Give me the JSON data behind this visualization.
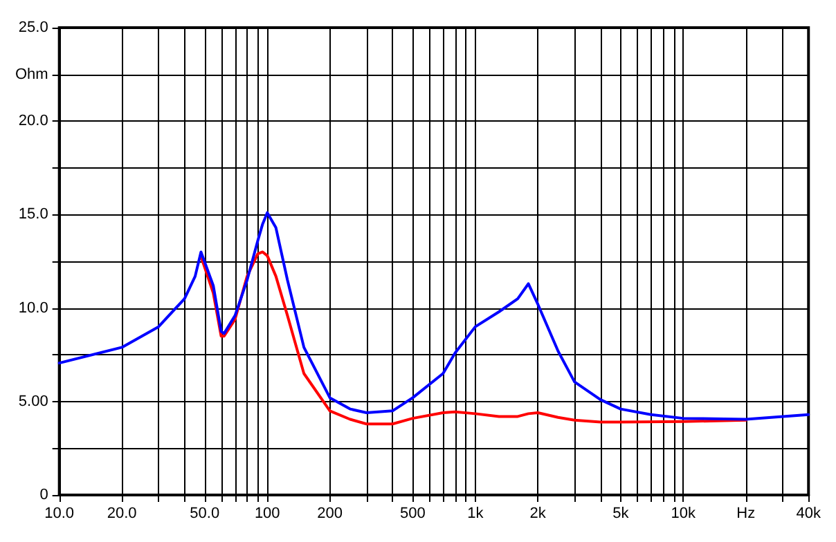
{
  "chart_data": {
    "type": "line",
    "log": "x",
    "grid": true,
    "marker": "none",
    "line_style": "solid",
    "xlim": [
      10,
      40000
    ],
    "xticks": [
      {
        "value": 10,
        "label": "10.0"
      },
      {
        "value": 20,
        "label": "20.0"
      },
      {
        "value": 30,
        "label": null
      },
      {
        "value": 40,
        "label": null
      },
      {
        "value": 50,
        "label": "50.0"
      },
      {
        "value": 60,
        "label": null
      },
      {
        "value": 70,
        "label": null
      },
      {
        "value": 80,
        "label": null
      },
      {
        "value": 90,
        "label": null
      },
      100,
      200,
      {
        "value": 300,
        "label": null
      },
      {
        "value": 400,
        "label": null
      },
      500,
      {
        "value": 600,
        "label": null
      },
      {
        "value": 700,
        "label": null
      },
      {
        "value": 800,
        "label": null
      },
      {
        "value": 900,
        "label": null
      },
      {
        "value": 1000,
        "label": "1k"
      },
      {
        "value": 2000,
        "label": "2k"
      },
      {
        "value": 3000,
        "label": null
      },
      {
        "value": 4000,
        "label": null
      },
      {
        "value": 5000,
        "label": "5k"
      },
      {
        "value": 6000,
        "label": null
      },
      {
        "value": 7000,
        "label": null
      },
      {
        "value": 8000,
        "label": null
      },
      {
        "value": 9000,
        "label": null
      },
      {
        "value": 10000,
        "label": "10k"
      },
      {
        "value": 20000,
        "label": "Hz"
      },
      {
        "value": 30000,
        "label": null
      },
      {
        "value": 40000,
        "label": "40k"
      }
    ],
    "ylim": [
      0,
      25
    ],
    "yticks": [
      0,
      {
        "value": 2.5,
        "label": null
      },
      {
        "value": 5,
        "label": "5.00"
      },
      {
        "value": 7.5,
        "label": null
      },
      {
        "value": 10,
        "label": "10.0"
      },
      {
        "value": 12.5,
        "label": null
      },
      {
        "value": 15,
        "label": "15.0"
      },
      {
        "value": 17.5,
        "label": null
      },
      {
        "value": 20,
        "label": "20.0"
      },
      {
        "value": 22.5,
        "label": "Ohm"
      },
      {
        "value": 25,
        "label": "25.0"
      }
    ],
    "series": [
      {
        "color": "#0000ff",
        "x": [
          10,
          20,
          30,
          40,
          45,
          48,
          55,
          60,
          62,
          70,
          80,
          90,
          95,
          100,
          110,
          125,
          150,
          200,
          250,
          300,
          400,
          500,
          700,
          800,
          1000,
          1300,
          1600,
          1800,
          2000,
          2500,
          3000,
          4000,
          5000,
          7000,
          10000,
          20000,
          40000
        ],
        "values": [
          7.06,
          7.9,
          9.0,
          10.5,
          11.7,
          13.0,
          11.2,
          8.75,
          8.64,
          9.6,
          11.5,
          13.6,
          14.5,
          15.1,
          14.3,
          11.5,
          7.9,
          5.2,
          4.6,
          4.4,
          4.5,
          5.2,
          6.5,
          7.6,
          9.0,
          9.8,
          10.5,
          11.3,
          10.2,
          7.7,
          6.05,
          5.1,
          4.6,
          4.3,
          4.1,
          4.05,
          4.3
        ]
      },
      {
        "color": "#ff0000",
        "x": [
          48,
          55,
          60,
          62,
          70,
          80,
          90,
          95,
          100,
          110,
          125,
          150,
          200,
          250,
          300,
          400,
          500,
          700,
          800,
          1000,
          1300,
          1600,
          1800,
          2000,
          2500,
          3000,
          4000,
          5000,
          10000,
          20000
        ],
        "values": [
          12.76,
          10.8,
          8.5,
          8.5,
          9.4,
          11.7,
          12.9,
          13.0,
          12.8,
          11.7,
          9.6,
          6.5,
          4.5,
          4.05,
          3.8,
          3.8,
          4.1,
          4.4,
          4.45,
          4.35,
          4.2,
          4.2,
          4.35,
          4.4,
          4.15,
          4.0,
          3.9,
          3.9,
          3.93,
          4.0
        ]
      }
    ]
  }
}
